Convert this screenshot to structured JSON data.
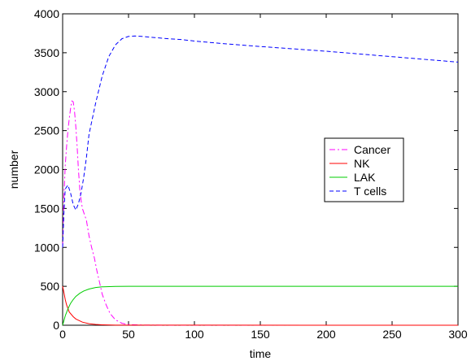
{
  "chart_data": {
    "type": "line",
    "xlabel": "time",
    "ylabel": "number",
    "xlim": [
      0,
      300
    ],
    "ylim": [
      0,
      4000
    ],
    "xticks": [
      0,
      50,
      100,
      150,
      200,
      250,
      300
    ],
    "yticks": [
      0,
      500,
      1000,
      1500,
      2000,
      2500,
      3000,
      3500,
      4000
    ],
    "grid": false,
    "legend_position": "right-center",
    "series": [
      {
        "name": "Cancer",
        "color": "#ff00ff",
        "style": "dashdot",
        "x": [
          0,
          1,
          2,
          3,
          4,
          5,
          6,
          7,
          8,
          9,
          10,
          11,
          12,
          13,
          14,
          15,
          16,
          18,
          20,
          22,
          24,
          26,
          28,
          30,
          33,
          36,
          40,
          45,
          50,
          60,
          80,
          300
        ],
        "y": [
          1000,
          1650,
          2050,
          2300,
          2500,
          2650,
          2780,
          2880,
          2870,
          2750,
          2550,
          2300,
          2000,
          1750,
          1600,
          1500,
          1450,
          1350,
          1150,
          1000,
          870,
          700,
          550,
          400,
          260,
          150,
          70,
          25,
          8,
          2,
          0,
          0
        ]
      },
      {
        "name": "NK",
        "color": "#ff0000",
        "style": "solid",
        "x": [
          0,
          1,
          2,
          3,
          5,
          8,
          10,
          15,
          20,
          25,
          30,
          40,
          300
        ],
        "y": [
          500,
          420,
          330,
          260,
          170,
          110,
          80,
          40,
          20,
          10,
          5,
          1,
          0
        ]
      },
      {
        "name": "LAK",
        "color": "#00cc00",
        "style": "solid",
        "x": [
          0,
          2,
          4,
          6,
          8,
          10,
          13,
          16,
          20,
          25,
          30,
          40,
          50,
          300
        ],
        "y": [
          0,
          120,
          210,
          280,
          330,
          370,
          410,
          440,
          465,
          485,
          493,
          498,
          500,
          500
        ]
      },
      {
        "name": "T cells",
        "color": "#0000ff",
        "style": "dashed",
        "x": [
          0,
          1,
          2,
          4,
          6,
          8,
          10,
          12,
          14,
          16,
          18,
          20,
          25,
          30,
          35,
          40,
          45,
          50,
          55,
          60,
          70,
          80,
          90,
          100,
          120,
          150,
          200,
          250,
          300
        ],
        "y": [
          1000,
          1450,
          1750,
          1800,
          1700,
          1550,
          1480,
          1560,
          1700,
          1900,
          2150,
          2450,
          2850,
          3200,
          3450,
          3600,
          3680,
          3710,
          3715,
          3710,
          3695,
          3680,
          3670,
          3650,
          3620,
          3580,
          3520,
          3450,
          3380
        ]
      }
    ]
  }
}
